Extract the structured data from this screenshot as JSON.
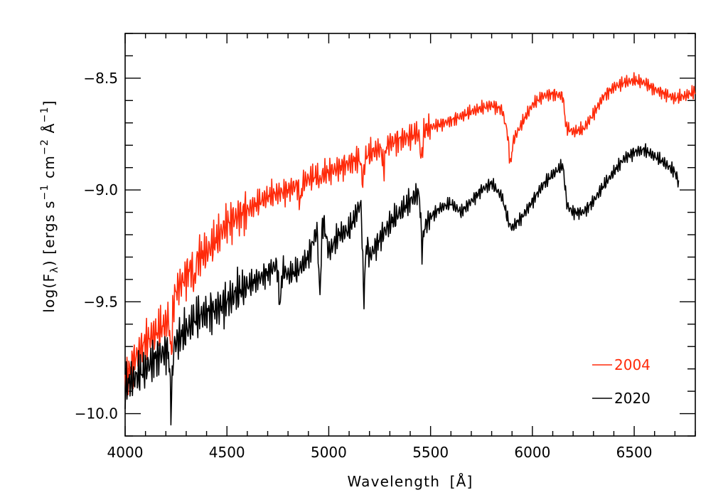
{
  "chart_data": {
    "type": "line",
    "xlabel_main": "Wavelength",
    "xlabel_unit": "[Å]",
    "ylabel": {
      "prefix": "log(F",
      "sub": "λ",
      "mid": ") [ergs s",
      "exp1": "−1",
      "cm": " cm",
      "exp2": "−2",
      "ang": " Å",
      "exp3": "−1",
      "suffix": "]"
    },
    "xlim": [
      4000,
      6800
    ],
    "ylim": [
      -10.1,
      -8.3
    ],
    "x_ticks": [
      4000,
      4500,
      5000,
      5500,
      6000,
      6500
    ],
    "x_minor_step": 100,
    "y_ticks": [
      -10.0,
      -9.5,
      -9.0,
      -8.5
    ],
    "y_tick_labels": [
      "−10.0",
      "−9.5",
      "−9.0",
      "−8.5"
    ],
    "y_minor_step": 0.1,
    "grid": false,
    "legend_position": "bottom-right",
    "series": [
      {
        "name": "2004",
        "color": "#ff2a0a",
        "x_range": [
          4000,
          6800
        ],
        "anchors": [
          [
            4000,
            -9.85
          ],
          [
            4050,
            -9.75
          ],
          [
            4100,
            -9.68
          ],
          [
            4150,
            -9.64
          ],
          [
            4200,
            -9.6
          ],
          [
            4250,
            -9.45
          ],
          [
            4300,
            -9.38
          ],
          [
            4350,
            -9.3
          ],
          [
            4400,
            -9.28
          ],
          [
            4450,
            -9.22
          ],
          [
            4500,
            -9.15
          ],
          [
            4550,
            -9.12
          ],
          [
            4600,
            -9.09
          ],
          [
            4700,
            -9.03
          ],
          [
            4800,
            -9.0
          ],
          [
            4900,
            -8.95
          ],
          [
            5000,
            -8.92
          ],
          [
            5100,
            -8.88
          ],
          [
            5200,
            -8.84
          ],
          [
            5300,
            -8.79
          ],
          [
            5400,
            -8.76
          ],
          [
            5500,
            -8.72
          ],
          [
            5600,
            -8.69
          ],
          [
            5700,
            -8.65
          ],
          [
            5800,
            -8.62
          ],
          [
            5850,
            -8.64
          ],
          [
            5880,
            -8.75
          ],
          [
            5895,
            -8.83
          ],
          [
            5910,
            -8.77
          ],
          [
            5950,
            -8.7
          ],
          [
            6000,
            -8.62
          ],
          [
            6050,
            -8.58
          ],
          [
            6100,
            -8.57
          ],
          [
            6150,
            -8.58
          ],
          [
            6165,
            -8.72
          ],
          [
            6200,
            -8.74
          ],
          [
            6250,
            -8.73
          ],
          [
            6300,
            -8.66
          ],
          [
            6350,
            -8.58
          ],
          [
            6400,
            -8.54
          ],
          [
            6450,
            -8.52
          ],
          [
            6500,
            -8.51
          ],
          [
            6550,
            -8.52
          ],
          [
            6600,
            -8.55
          ],
          [
            6650,
            -8.57
          ],
          [
            6700,
            -8.59
          ],
          [
            6750,
            -8.58
          ],
          [
            6800,
            -8.56
          ]
        ],
        "dips": [
          [
            4226,
            -9.72
          ],
          [
            4340,
            -9.42
          ],
          [
            4860,
            -9.05
          ],
          [
            4957,
            -8.96
          ],
          [
            5167,
            -8.96
          ],
          [
            5270,
            -8.9
          ],
          [
            5455,
            -8.86
          ],
          [
            5890,
            -8.87
          ]
        ]
      },
      {
        "name": "2020",
        "color": "#000000",
        "x_range": [
          4000,
          6720
        ],
        "anchors": [
          [
            4000,
            -9.88
          ],
          [
            4050,
            -9.84
          ],
          [
            4100,
            -9.8
          ],
          [
            4150,
            -9.75
          ],
          [
            4200,
            -9.72
          ],
          [
            4250,
            -9.68
          ],
          [
            4300,
            -9.63
          ],
          [
            4350,
            -9.57
          ],
          [
            4400,
            -9.55
          ],
          [
            4450,
            -9.53
          ],
          [
            4500,
            -9.5
          ],
          [
            4550,
            -9.46
          ],
          [
            4600,
            -9.43
          ],
          [
            4650,
            -9.4
          ],
          [
            4700,
            -9.37
          ],
          [
            4750,
            -9.33
          ],
          [
            4800,
            -9.38
          ],
          [
            4850,
            -9.36
          ],
          [
            4900,
            -9.3
          ],
          [
            4950,
            -9.15
          ],
          [
            4960,
            -9.06
          ],
          [
            5000,
            -9.28
          ],
          [
            5050,
            -9.2
          ],
          [
            5100,
            -9.18
          ],
          [
            5160,
            -9.05
          ],
          [
            5172,
            -9.15
          ],
          [
            5200,
            -9.3
          ],
          [
            5250,
            -9.22
          ],
          [
            5300,
            -9.15
          ],
          [
            5350,
            -9.1
          ],
          [
            5400,
            -9.05
          ],
          [
            5450,
            -9.0
          ],
          [
            5460,
            -9.18
          ],
          [
            5500,
            -9.12
          ],
          [
            5550,
            -9.08
          ],
          [
            5600,
            -9.06
          ],
          [
            5650,
            -9.1
          ],
          [
            5700,
            -9.05
          ],
          [
            5750,
            -9.0
          ],
          [
            5800,
            -8.97
          ],
          [
            5850,
            -9.03
          ],
          [
            5885,
            -9.15
          ],
          [
            5900,
            -9.17
          ],
          [
            5950,
            -9.12
          ],
          [
            6000,
            -9.05
          ],
          [
            6050,
            -8.98
          ],
          [
            6100,
            -8.93
          ],
          [
            6150,
            -8.89
          ],
          [
            6170,
            -9.07
          ],
          [
            6200,
            -9.1
          ],
          [
            6250,
            -9.1
          ],
          [
            6300,
            -9.05
          ],
          [
            6350,
            -8.98
          ],
          [
            6400,
            -8.92
          ],
          [
            6450,
            -8.86
          ],
          [
            6500,
            -8.83
          ],
          [
            6550,
            -8.82
          ],
          [
            6600,
            -8.85
          ],
          [
            6650,
            -8.88
          ],
          [
            6700,
            -8.92
          ],
          [
            6720,
            -8.97
          ]
        ],
        "dips": [
          [
            4226,
            -9.95
          ],
          [
            4760,
            -9.51
          ],
          [
            4957,
            -9.46
          ],
          [
            5172,
            -9.47
          ],
          [
            5455,
            -9.22
          ]
        ]
      }
    ]
  }
}
